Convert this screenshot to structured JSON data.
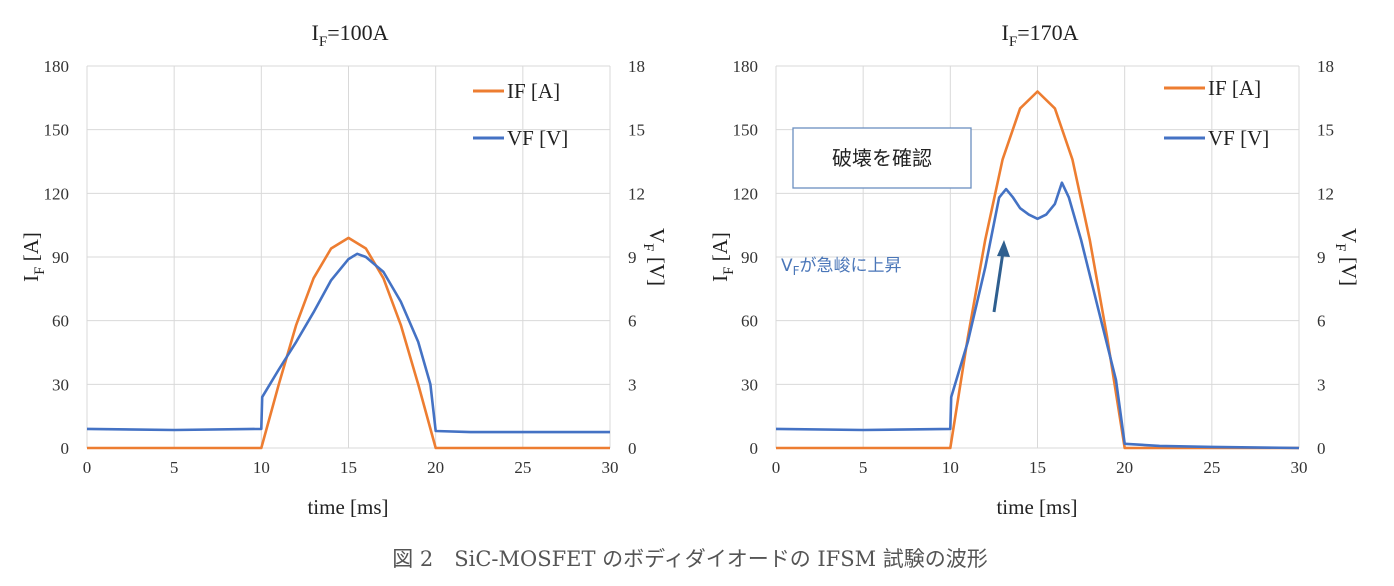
{
  "figure": {
    "caption": "図 2　SiC-MOSFET のボディダイオードの IFSM 試験の波形"
  },
  "chart_data": [
    {
      "type": "line",
      "title_main": "I",
      "title_sub": "F",
      "title_rest": "=100A",
      "xlabel": "time [ms]",
      "ylabel_main": "I",
      "ylabel_sub": "F",
      "ylabel_rest": " [A]",
      "y2label_main": "V",
      "y2label_sub": "F",
      "y2label_rest": " [V]",
      "xlim": [
        0,
        30
      ],
      "ylim": [
        0,
        180
      ],
      "y2lim": [
        0,
        18
      ],
      "x_ticks": [
        "0",
        "5",
        "10",
        "15",
        "20",
        "25",
        "30"
      ],
      "y_ticks": [
        "0",
        "30",
        "60",
        "90",
        "120",
        "150",
        "180"
      ],
      "y2_ticks": [
        "0",
        "3",
        "6",
        "9",
        "12",
        "15",
        "18"
      ],
      "grid": true,
      "legend_position": "top-right",
      "series": [
        {
          "name": "IF [A]",
          "axis": "left",
          "color": "#ED7D31",
          "x": [
            0,
            10,
            11,
            12,
            13,
            14,
            15,
            16,
            17,
            18,
            19,
            20,
            30
          ],
          "y": [
            0,
            0,
            30,
            58,
            80,
            94,
            99,
            94,
            80,
            58,
            30,
            0,
            0
          ]
        },
        {
          "name": "VF [V]",
          "axis": "right",
          "color": "#4472C4",
          "x": [
            0,
            5,
            10,
            10.05,
            11,
            12,
            13,
            14,
            15,
            15.5,
            16,
            17,
            18,
            19,
            19.7,
            20,
            22,
            30
          ],
          "y": [
            0.9,
            0.85,
            0.9,
            2.4,
            3.7,
            5.0,
            6.4,
            7.9,
            8.9,
            9.15,
            9.0,
            8.3,
            6.9,
            5.0,
            3.0,
            0.8,
            0.75,
            0.75
          ]
        }
      ]
    },
    {
      "type": "line",
      "title_main": "I",
      "title_sub": "F",
      "title_rest": "=170A",
      "xlabel": "time [ms]",
      "ylabel_main": "I",
      "ylabel_sub": "F",
      "ylabel_rest": " [A]",
      "y2label_main": "V",
      "y2label_sub": "F",
      "y2label_rest": " [V]",
      "xlim": [
        0,
        30
      ],
      "ylim": [
        0,
        180
      ],
      "y2lim": [
        0,
        18
      ],
      "x_ticks": [
        "0",
        "5",
        "10",
        "15",
        "20",
        "25",
        "30"
      ],
      "y_ticks": [
        "0",
        "30",
        "60",
        "90",
        "120",
        "150",
        "180"
      ],
      "y2_ticks": [
        "0",
        "3",
        "6",
        "9",
        "12",
        "15",
        "18"
      ],
      "grid": true,
      "legend_position": "top-right",
      "callout": "破壊を確認",
      "annotation": {
        "sub_main": "V",
        "sub_sub": "F",
        "text": "が急峻に上昇"
      },
      "series": [
        {
          "name": "IF [A]",
          "axis": "left",
          "color": "#ED7D31",
          "x": [
            0,
            10,
            11,
            12,
            13,
            14,
            15,
            16,
            17,
            18,
            19,
            20,
            30
          ],
          "y": [
            0,
            0,
            52,
            98,
            136,
            160,
            168,
            160,
            136,
            98,
            52,
            0,
            0
          ]
        },
        {
          "name": "VF [V]",
          "axis": "right",
          "color": "#4472C4",
          "x": [
            0,
            5,
            10,
            10.05,
            11,
            12,
            12.8,
            13.2,
            13.6,
            14,
            14.5,
            15,
            15.5,
            16,
            16.4,
            16.8,
            17.5,
            18.5,
            19.5,
            20,
            22,
            25,
            30
          ],
          "y": [
            0.9,
            0.85,
            0.9,
            2.4,
            5.0,
            8.5,
            11.8,
            12.2,
            11.8,
            11.3,
            11.0,
            10.8,
            11.0,
            11.5,
            12.5,
            11.8,
            9.8,
            6.5,
            3.2,
            0.2,
            0.1,
            0.05,
            0.0
          ]
        }
      ]
    }
  ]
}
